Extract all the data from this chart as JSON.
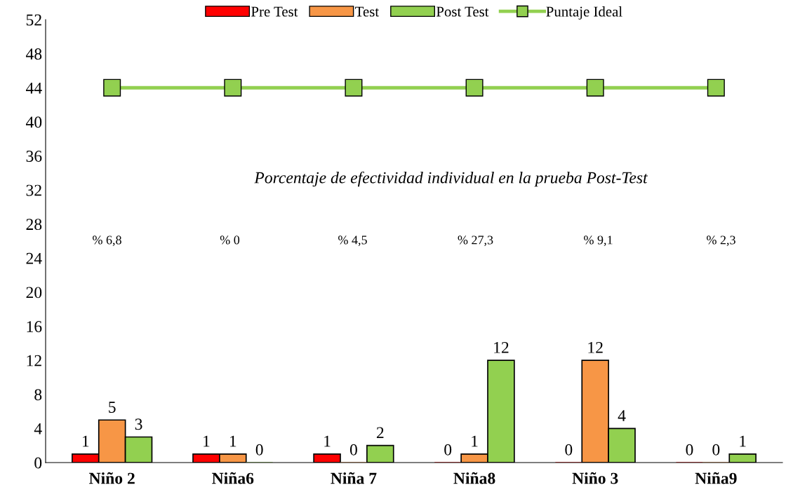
{
  "chart_data": {
    "type": "bar",
    "categories": [
      "Niño 2",
      "Niña6",
      "Niña 7",
      "Niña8",
      "Niño 3",
      "Niña9"
    ],
    "series": [
      {
        "name": "Pre Test",
        "color": "#ff0000",
        "values": [
          1,
          1,
          1,
          0,
          0,
          0
        ],
        "value_labels": [
          "1",
          "1",
          "1",
          "0",
          "0",
          "0"
        ]
      },
      {
        "name": "Test",
        "color": "#f79646",
        "values": [
          5,
          1,
          0,
          1,
          12,
          0
        ],
        "value_labels": [
          "5",
          "1",
          "0",
          "1",
          "12",
          "0"
        ]
      },
      {
        "name": "Post Test",
        "color": "#92d050",
        "values": [
          3,
          0,
          2,
          12,
          4,
          1
        ],
        "value_labels": [
          "3",
          "0",
          "2",
          "12",
          "4",
          "1"
        ]
      },
      {
        "name": "Puntaje Ideal",
        "type": "line",
        "color": "#92d050",
        "marker": "square",
        "values": [
          44,
          44,
          44,
          44,
          44,
          44
        ]
      }
    ],
    "ylim": [
      0,
      52
    ],
    "yticks": [
      0,
      4,
      8,
      12,
      16,
      20,
      24,
      28,
      32,
      36,
      40,
      44,
      48,
      52
    ],
    "grid": false,
    "legend": "top",
    "annotations": [
      "Porcentaje de efectividad individual en la prueba Post-Test",
      "% 6,8",
      "% 0",
      "% 4,5",
      "% 27,3",
      "% 9,1",
      "% 2,3"
    ]
  }
}
